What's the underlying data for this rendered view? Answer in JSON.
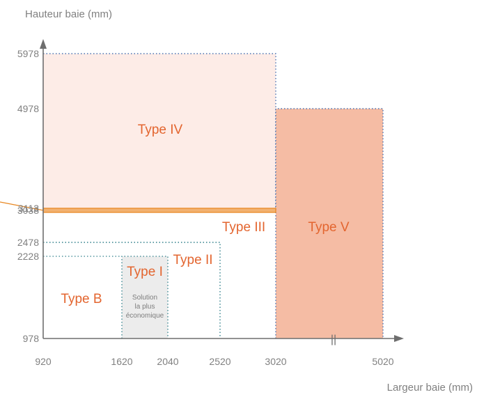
{
  "axes": {
    "x_title": "Largeur baie (mm)",
    "y_title": "Hauteur baie (mm)"
  },
  "chart_data": {
    "type": "area",
    "x_ticks": [
      "920",
      "1620",
      "2040",
      "2520",
      "3020",
      "5020"
    ],
    "y_ticks": [
      "978",
      "2228",
      "2478",
      "3038",
      "3113",
      "4978",
      "5978"
    ],
    "x_break_label": "||",
    "zones": [
      {
        "name": "Type B",
        "x": [
          920,
          3020
        ],
        "y": [
          978,
          3038
        ],
        "fill": "#ffffff",
        "border": "none"
      },
      {
        "name": "Type I",
        "x": [
          1620,
          2040
        ],
        "y": [
          978,
          2228
        ],
        "fill": "#ececec",
        "border": "#2e7f8a",
        "note": [
          "Solution",
          "la plus",
          "économique"
        ]
      },
      {
        "name": "Type II",
        "x": [
          920,
          2520
        ],
        "y": [
          978,
          2478
        ],
        "fill": "none",
        "border": "#2e7f8a"
      },
      {
        "name": "Type III",
        "x": [
          920,
          3020
        ],
        "y": [
          3038,
          3113
        ],
        "fill": "#f2b170",
        "border": "#e8861f"
      },
      {
        "name": "Type IV",
        "x": [
          920,
          3020
        ],
        "y": [
          3113,
          5978
        ],
        "fill": "#fdece7",
        "border": "#4a73b3"
      },
      {
        "name": "Type V",
        "x": [
          3020,
          5020
        ],
        "y": [
          978,
          4978
        ],
        "fill": "#f5bca4",
        "border": "#4a73b3"
      }
    ],
    "colors": {
      "label": "#e3652f",
      "axis": "#6e6e6e",
      "tick_text": "#808080",
      "type3_line": "#e8861f"
    },
    "grid": false
  }
}
